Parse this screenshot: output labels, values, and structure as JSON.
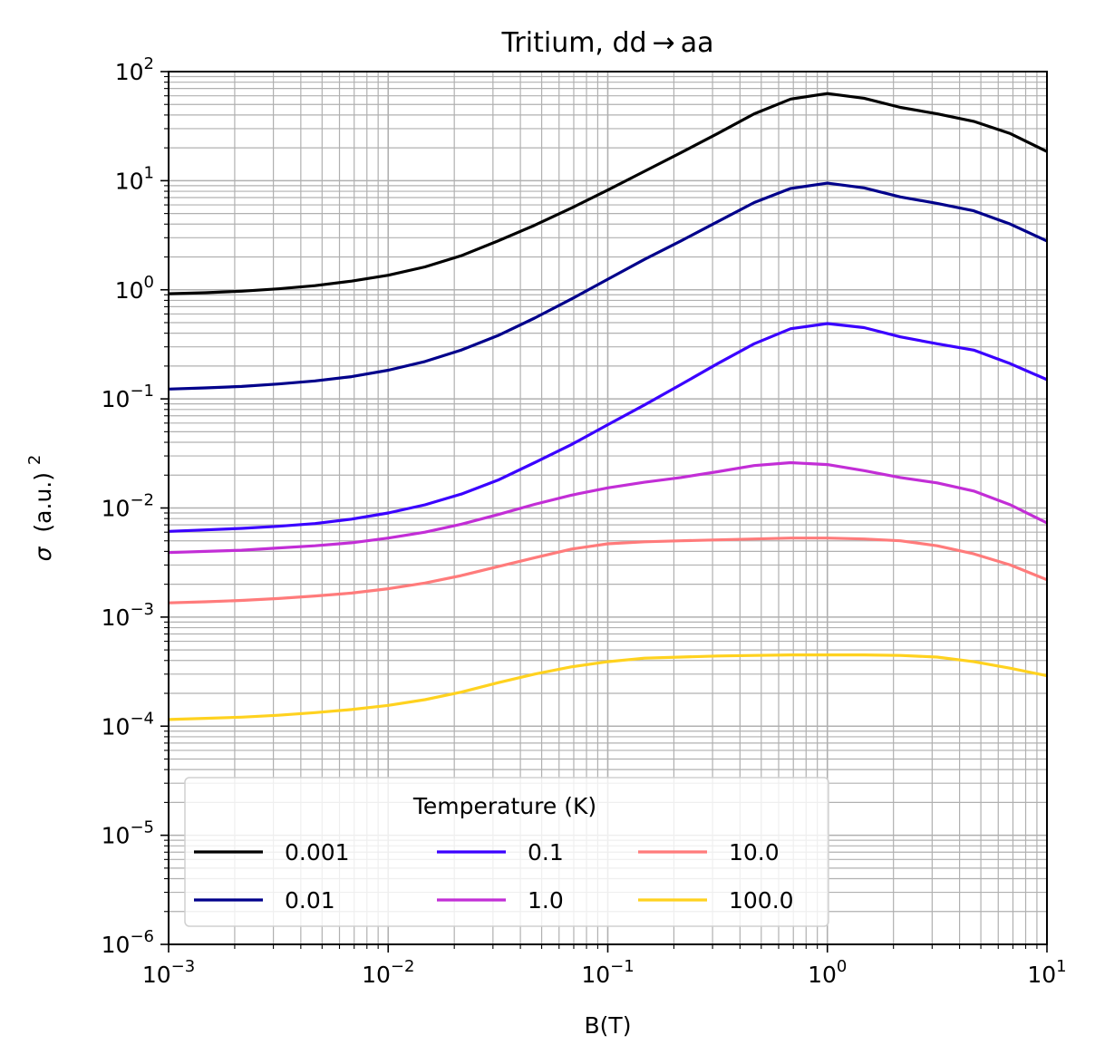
{
  "chart_data": {
    "type": "line",
    "title": "Tritium, dd → aa",
    "xlabel": "B(T)",
    "ylabel_symbol": "σ",
    "ylabel_unit": "(a.u.)",
    "ylabel_unit_exponent": "2",
    "xscale": "log",
    "yscale": "log",
    "xlim": [
      0.001,
      10
    ],
    "ylim": [
      1e-06,
      100
    ],
    "grid": "major and minor",
    "x_tick_labels": [
      {
        "base": "10",
        "exponent": "−3"
      },
      {
        "base": "10",
        "exponent": "−2"
      },
      {
        "base": "10",
        "exponent": "−1"
      },
      {
        "base": "10",
        "exponent": "0"
      },
      {
        "base": "10",
        "exponent": "1"
      }
    ],
    "y_tick_labels": [
      {
        "base": "10",
        "exponent": "−6"
      },
      {
        "base": "10",
        "exponent": "−5"
      },
      {
        "base": "10",
        "exponent": "−4"
      },
      {
        "base": "10",
        "exponent": "−3"
      },
      {
        "base": "10",
        "exponent": "−2"
      },
      {
        "base": "10",
        "exponent": "−1"
      },
      {
        "base": "10",
        "exponent": "0"
      },
      {
        "base": "10",
        "exponent": "1"
      },
      {
        "base": "10",
        "exponent": "2"
      }
    ],
    "legend": {
      "title": "Temperature (K)",
      "placement": "lower-left",
      "columns": 3
    },
    "x": [
      0.001,
      0.00147,
      0.00215,
      0.00316,
      0.00464,
      0.00681,
      0.01,
      0.0147,
      0.0215,
      0.0316,
      0.0464,
      0.0681,
      0.1,
      0.147,
      0.215,
      0.316,
      0.464,
      0.681,
      1.0,
      1.47,
      2.15,
      3.16,
      4.64,
      6.81,
      10.0
    ],
    "series": [
      {
        "name": "0.001",
        "color": "#000000",
        "values": [
          0.92,
          0.94,
          0.97,
          1.02,
          1.09,
          1.2,
          1.36,
          1.62,
          2.05,
          2.8,
          3.9,
          5.6,
          8.2,
          12.2,
          18.0,
          27.0,
          41.0,
          56.0,
          63.0,
          57.0,
          47.0,
          41.0,
          35.0,
          27.0,
          18.5
        ]
      },
      {
        "name": "0.01",
        "color": "#00008b",
        "values": [
          0.123,
          0.126,
          0.13,
          0.137,
          0.146,
          0.16,
          0.183,
          0.22,
          0.28,
          0.38,
          0.55,
          0.82,
          1.25,
          1.9,
          2.8,
          4.2,
          6.3,
          8.5,
          9.5,
          8.6,
          7.1,
          6.2,
          5.3,
          4.0,
          2.8
        ]
      },
      {
        "name": "0.1",
        "color": "#3a00ff",
        "values": [
          0.0061,
          0.0063,
          0.0065,
          0.0068,
          0.0072,
          0.0079,
          0.009,
          0.0107,
          0.0134,
          0.018,
          0.026,
          0.038,
          0.058,
          0.088,
          0.135,
          0.21,
          0.32,
          0.44,
          0.49,
          0.45,
          0.37,
          0.32,
          0.28,
          0.21,
          0.15
        ]
      },
      {
        "name": "1.0",
        "color": "#c22ed6",
        "values": [
          0.0039,
          0.004,
          0.0041,
          0.0043,
          0.0045,
          0.0048,
          0.0053,
          0.006,
          0.0071,
          0.0087,
          0.0108,
          0.0131,
          0.0153,
          0.0172,
          0.019,
          0.0215,
          0.0245,
          0.026,
          0.025,
          0.022,
          0.019,
          0.017,
          0.0143,
          0.0107,
          0.0073
        ]
      },
      {
        "name": "10.0",
        "color": "#ff7b7b",
        "values": [
          0.00135,
          0.00138,
          0.00142,
          0.00148,
          0.00156,
          0.00166,
          0.00182,
          0.00205,
          0.0024,
          0.0029,
          0.0035,
          0.0042,
          0.0047,
          0.0049,
          0.005,
          0.0051,
          0.0052,
          0.0053,
          0.0053,
          0.0052,
          0.005,
          0.0045,
          0.0038,
          0.003,
          0.0022
        ]
      },
      {
        "name": "100.0",
        "color": "#ffd21f",
        "values": [
          0.000115,
          0.000118,
          0.000121,
          0.000126,
          0.000133,
          0.000142,
          0.000155,
          0.000175,
          0.000205,
          0.00025,
          0.0003,
          0.00035,
          0.00039,
          0.00042,
          0.00043,
          0.00044,
          0.000445,
          0.00045,
          0.00045,
          0.00045,
          0.000445,
          0.00043,
          0.00039,
          0.00034,
          0.00029
        ]
      }
    ]
  }
}
